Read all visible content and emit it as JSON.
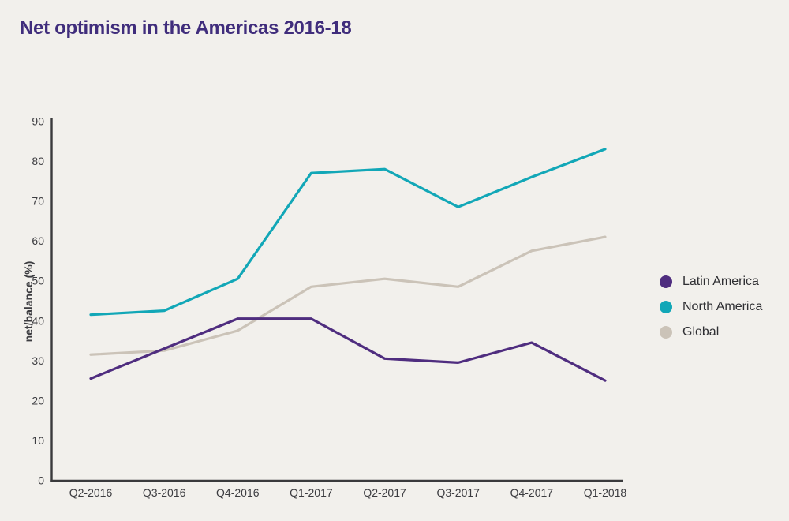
{
  "title": {
    "text": "Net optimism in the Americas 2016-18",
    "color": "#402d7c"
  },
  "chart_data": {
    "type": "line",
    "title": "Net optimism in the Americas 2016-18",
    "categories": [
      "Q2-2016",
      "Q3-2016",
      "Q4-2016",
      "Q1-2017",
      "Q2-2017",
      "Q3-2017",
      "Q4-2017",
      "Q1-2018"
    ],
    "series": [
      {
        "name": "Latin America",
        "color": "#4f2d7f",
        "values": [
          25.5,
          33,
          40.5,
          40.5,
          30.5,
          29.5,
          34.5,
          25
        ]
      },
      {
        "name": "North America",
        "color": "#12a7b7",
        "values": [
          41.5,
          42.5,
          50.5,
          77,
          78,
          68.5,
          76,
          83
        ]
      },
      {
        "name": "Global",
        "color": "#cbc3b8",
        "values": [
          31.5,
          32.5,
          37.5,
          48.5,
          50.5,
          48.5,
          57.5,
          61
        ]
      }
    ],
    "xlabel": "",
    "ylabel": "net/balance (%)",
    "ylim": [
      0,
      90
    ],
    "y_ticks": [
      0,
      10,
      20,
      30,
      40,
      50,
      60,
      70,
      80,
      90
    ],
    "grid": false,
    "legend_position": "right",
    "axis_color": "#3a3a3c",
    "tick_label_color": "#3c3c40",
    "legend_text_color": "#2f2f33",
    "background": "#f2f0ec"
  }
}
